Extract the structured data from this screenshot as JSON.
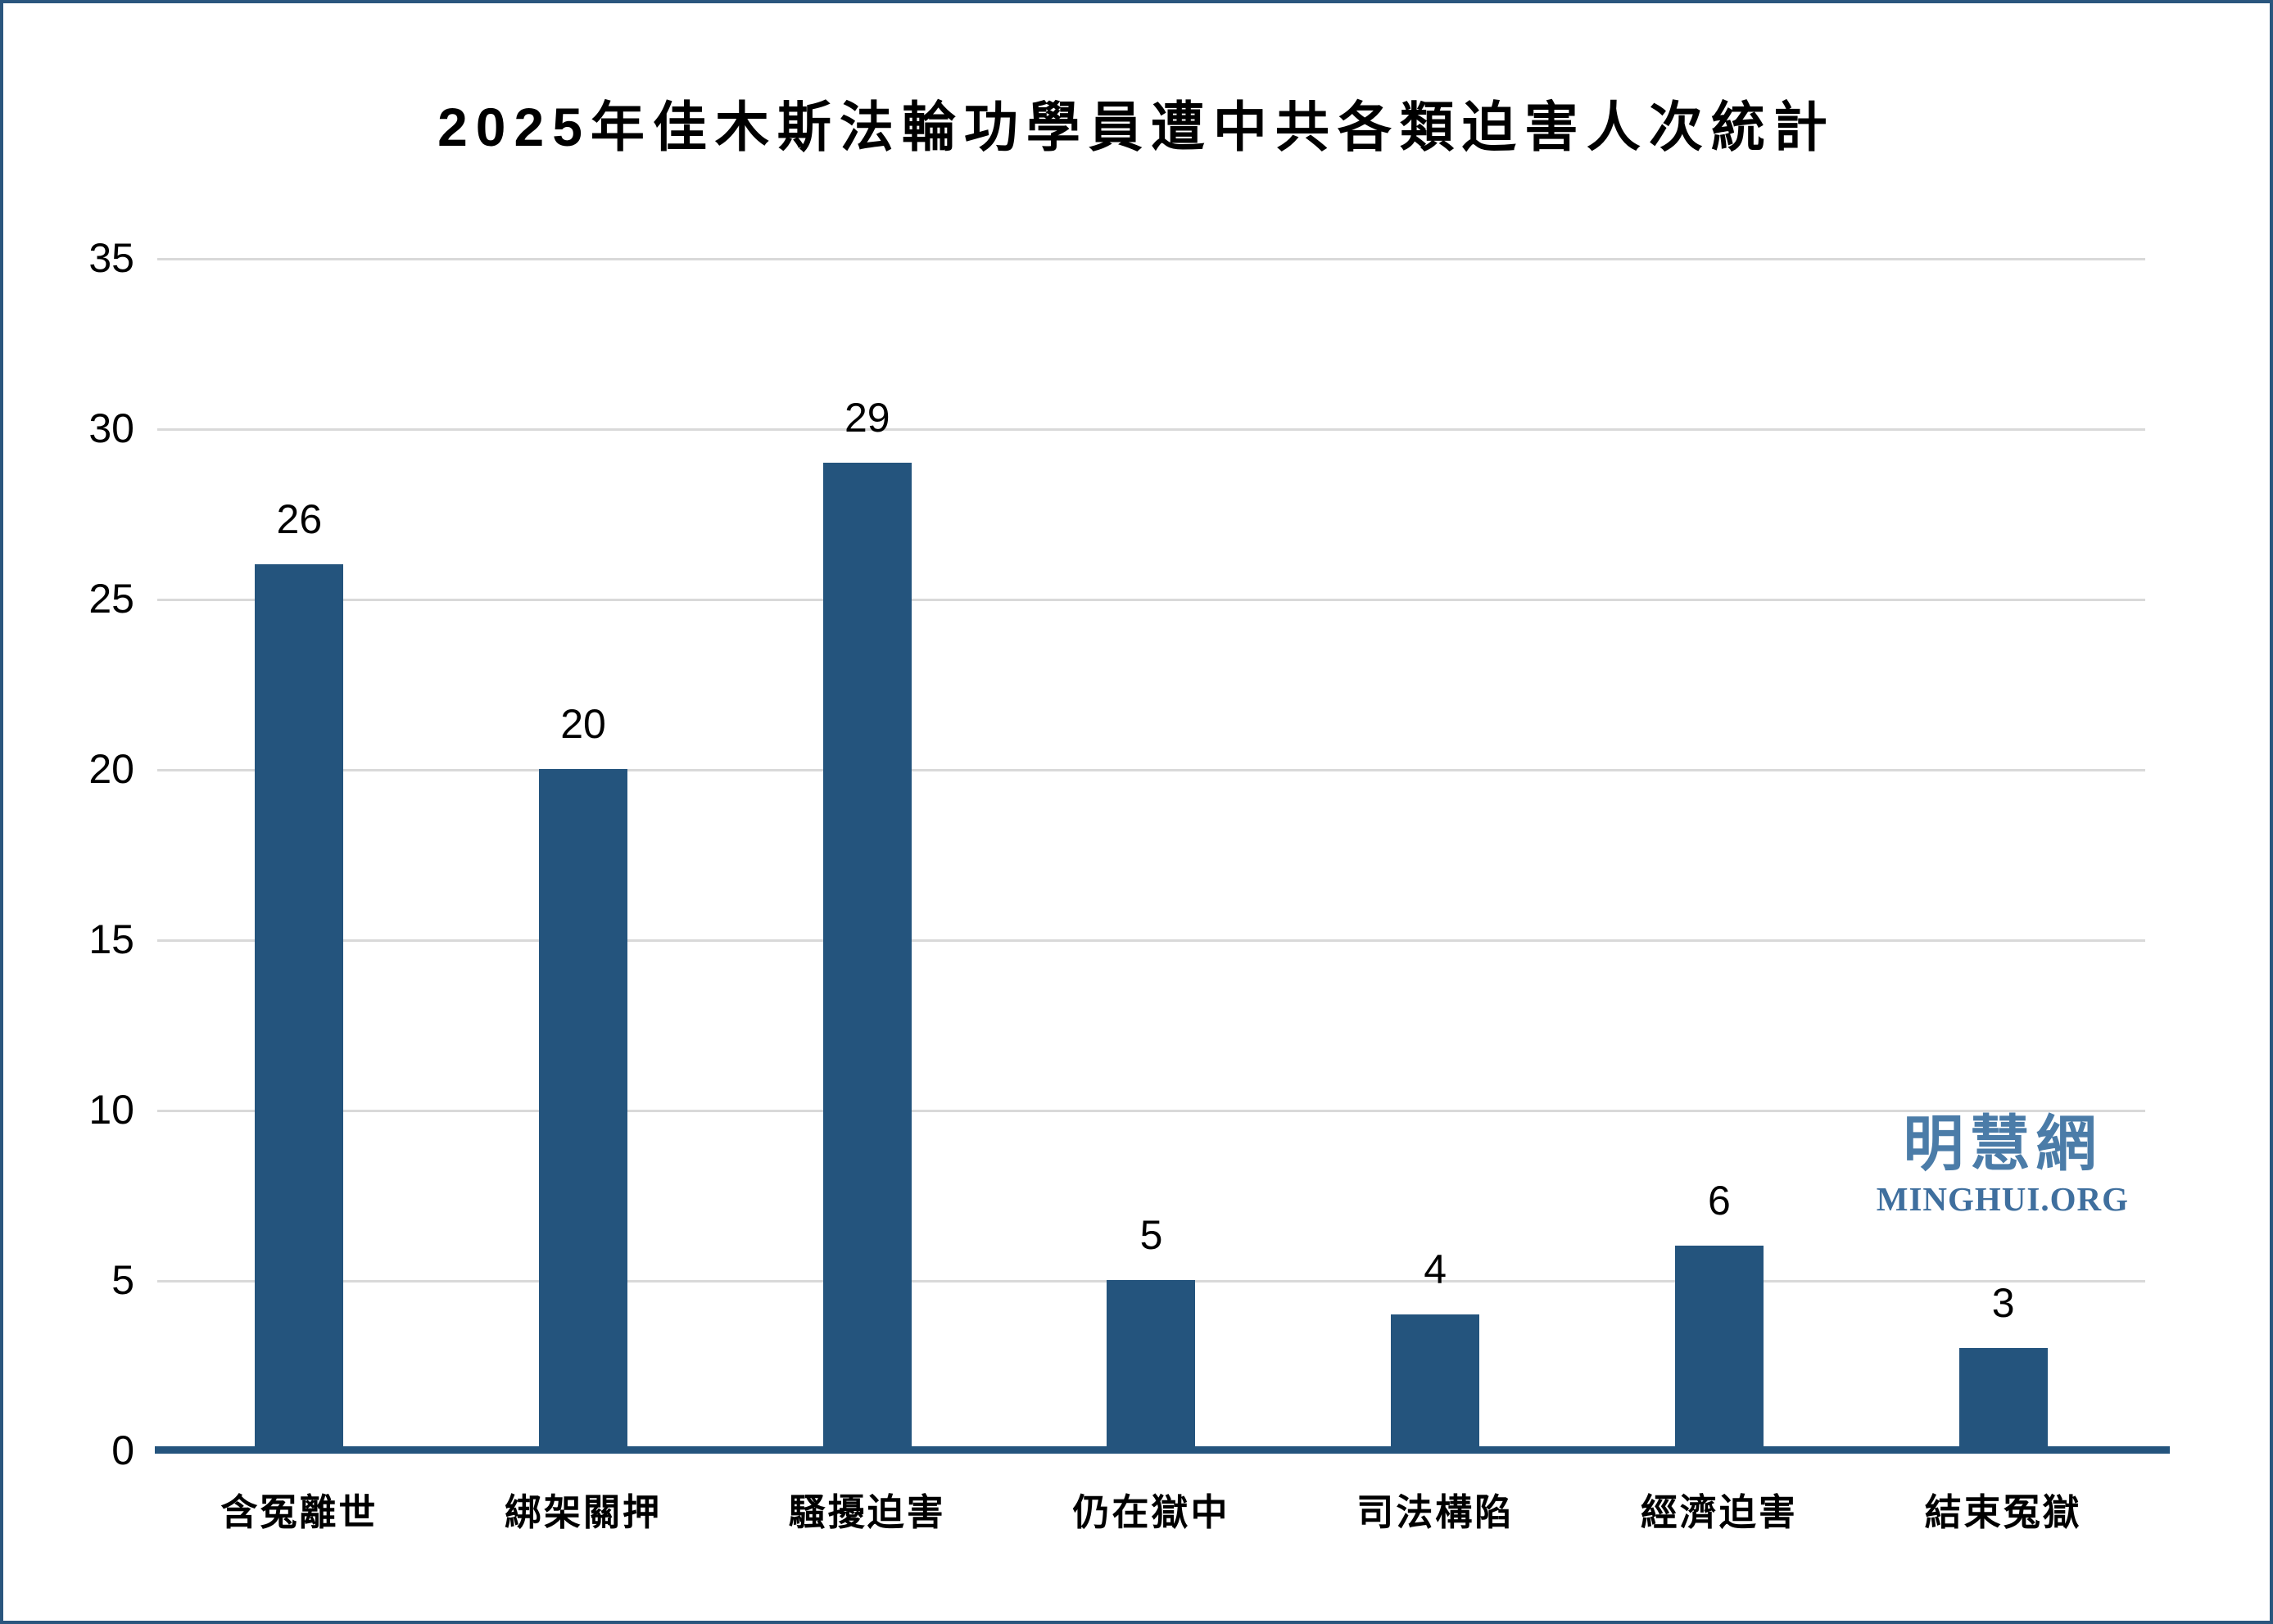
{
  "title": "2025年佳木斯法輪功學員遭中共各類迫害人次統計",
  "watermark": {
    "cjk": "明慧網",
    "latin": "MINGHUI.ORG"
  },
  "colors": {
    "bar": "#24547d",
    "axis_baseline": "#24547d",
    "gridline": "#d9d9d9",
    "border": "#2a567e",
    "watermark_cjk": "#4b7ca8",
    "watermark_latin": "#3f6f9e"
  },
  "chart_data": {
    "type": "bar",
    "title": "2025年佳木斯法輪功學員遭中共各類迫害人次統計",
    "categories": [
      "含冤離世",
      "綁架關押",
      "騷擾迫害",
      "仍在獄中",
      "司法構陷",
      "經濟迫害",
      "結束冤獄"
    ],
    "values": [
      26,
      20,
      29,
      5,
      4,
      6,
      3
    ],
    "data_labels": [
      "26",
      "20",
      "29",
      "5",
      "4",
      "6",
      "3"
    ],
    "xlabel": "",
    "ylabel": "",
    "ylim": [
      0,
      35
    ],
    "yticks": [
      0,
      5,
      10,
      15,
      20,
      25,
      30,
      35
    ],
    "grid": true,
    "legend": false
  }
}
